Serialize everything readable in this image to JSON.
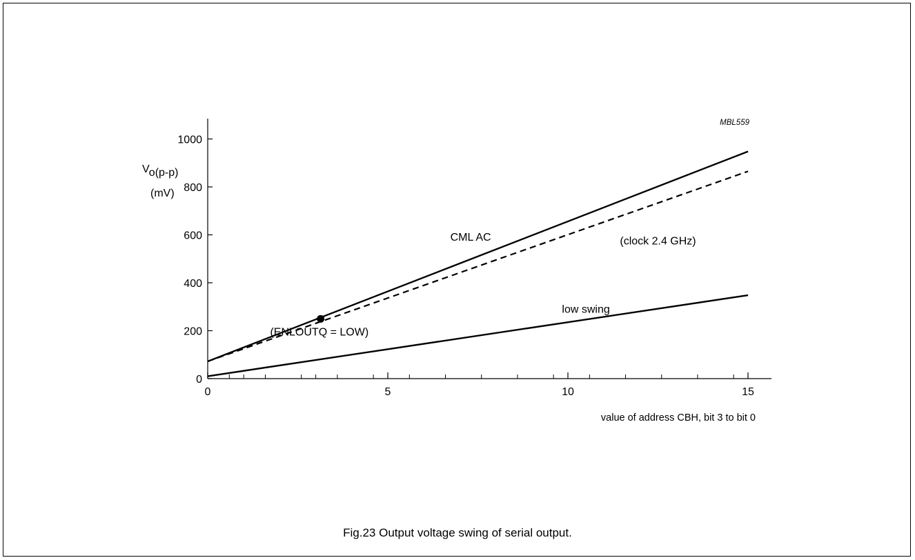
{
  "figure": {
    "caption": "Fig.23  Output voltage swing of serial output.",
    "code": "MBL559"
  },
  "chart_data": {
    "type": "line",
    "xlabel": "value of address CBH, bit 3 to bit 0",
    "ylabel_main": "V",
    "ylabel_sub": "o(p-p)",
    "yunit": "(mV)",
    "xlim": [
      0,
      15.6
    ],
    "ylim": [
      0,
      1100
    ],
    "x_ticks": [
      0,
      5,
      10,
      15
    ],
    "x_minor_ticks": [
      0.6,
      1,
      1.6,
      2.6,
      3,
      3.6,
      4.6,
      5.6,
      6.6,
      7.6,
      8.6,
      9.6,
      10.6,
      11.6,
      12.6,
      13.6,
      14.6
    ],
    "y_ticks": [
      0,
      200,
      400,
      600,
      800,
      1000
    ],
    "grid": false,
    "series": [
      {
        "name": "CML AC",
        "style": "solid",
        "x": [
          0,
          15
        ],
        "y": [
          72,
          948
        ]
      },
      {
        "name": "(clock 2.4 GHz)",
        "style": "dashed",
        "x": [
          0,
          15
        ],
        "y": [
          72,
          865
        ]
      },
      {
        "name": "low swing",
        "style": "solid",
        "x": [
          0,
          15
        ],
        "y": [
          10,
          348
        ]
      }
    ],
    "points": [
      {
        "label": "(ENLOUTQ = LOW)",
        "x": 3,
        "y": 248
      }
    ],
    "annotations": [
      {
        "text": "CML AC",
        "x": 7.3,
        "y": 575
      },
      {
        "text": "(clock 2.4 GHz)",
        "x": 12.5,
        "y": 560
      },
      {
        "text": "low swing",
        "x": 10.5,
        "y": 275
      },
      {
        "text": "(ENLOUTQ = LOW)",
        "x": 3.1,
        "y": 180
      }
    ]
  }
}
